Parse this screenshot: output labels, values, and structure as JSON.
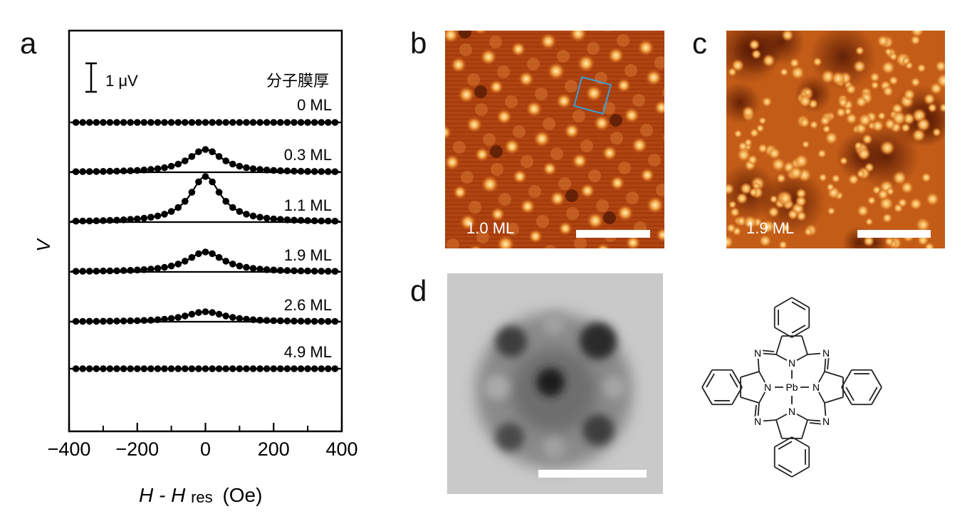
{
  "panel_labels": {
    "a": "a",
    "b": "b",
    "c": "c",
    "d": "d"
  },
  "panel_a": {
    "y_axis_label": "V",
    "x_axis_label_main": "H - H",
    "x_axis_label_sub": "res",
    "x_axis_label_unit": "(Oe)",
    "scale_bar_label": "1 μV",
    "legend_title": "分子膜厚",
    "x_ticks": [
      "−400",
      "−200",
      "0",
      "200",
      "400"
    ]
  },
  "panel_b": {
    "label": "1.0 ML"
  },
  "panel_c": {
    "label": "1.9 ML"
  },
  "panel_d": {
    "atom_labels": [
      "N",
      "Pb"
    ]
  },
  "chart_data": {
    "type": "line",
    "xlabel": "H - Hres (Oe)",
    "ylabel": "V",
    "xlim": [
      -400,
      400
    ],
    "scale_bar_uV": 1,
    "series": [
      {
        "name": "0 ML",
        "peak_uV": 0.0,
        "hwhm_oe": 60
      },
      {
        "name": "0.3 ML",
        "peak_uV": 0.8,
        "hwhm_oe": 60
      },
      {
        "name": "1.1 ML",
        "peak_uV": 1.6,
        "hwhm_oe": 55
      },
      {
        "name": "1.9 ML",
        "peak_uV": 0.7,
        "hwhm_oe": 65
      },
      {
        "name": "2.6 ML",
        "peak_uV": 0.35,
        "hwhm_oe": 70
      },
      {
        "name": "4.9 ML",
        "peak_uV": 0.0,
        "hwhm_oe": 60
      }
    ]
  }
}
